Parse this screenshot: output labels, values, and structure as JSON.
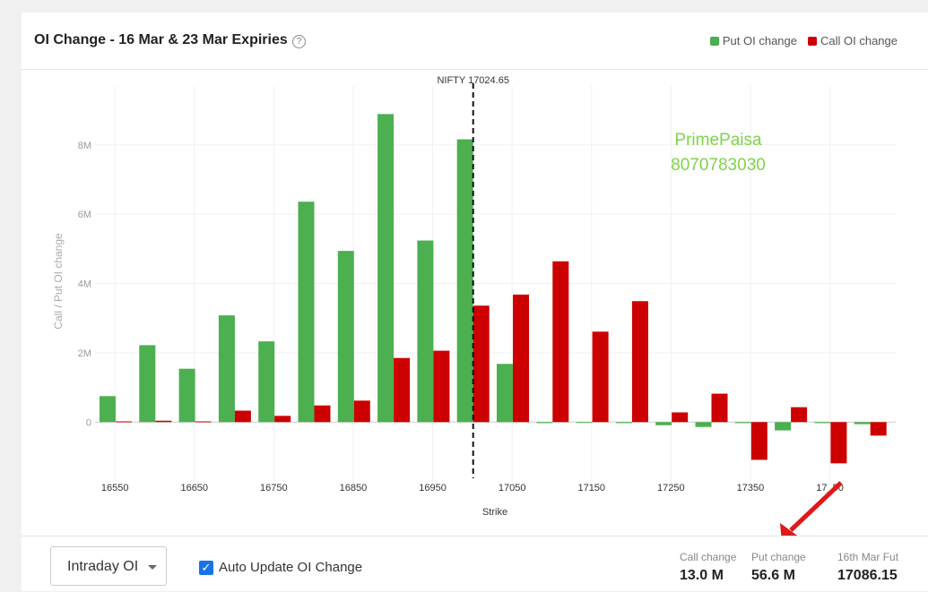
{
  "header": {
    "title": "OI Change - 16 Mar & 23 Mar Expiries",
    "legend": [
      {
        "label": "Put OI change",
        "color": "#4caf50"
      },
      {
        "label": "Call OI change",
        "color": "#cc0000"
      }
    ]
  },
  "watermark": {
    "line1": "PrimePaisa",
    "line2": "8070783030",
    "color": "#7ed348"
  },
  "chart_data": {
    "type": "bar",
    "categories": [
      "16550",
      "16600",
      "16650",
      "16700",
      "16750",
      "16800",
      "16850",
      "16900",
      "16950",
      "17000",
      "17050",
      "17100",
      "17150",
      "17200",
      "17250",
      "17300",
      "17350",
      "17400",
      "17450",
      "17500"
    ],
    "tick_labels": [
      "16550",
      "16650",
      "16750",
      "16850",
      "16950",
      "17050",
      "17150",
      "17250",
      "17350",
      "17_50"
    ],
    "series": [
      {
        "name": "Put OI change",
        "color": "#4caf50",
        "values": [
          0.75,
          2.22,
          1.54,
          3.08,
          2.33,
          6.36,
          4.94,
          8.89,
          5.24,
          8.16,
          1.68,
          -0.03,
          -0.01,
          -0.03,
          -0.09,
          -0.14,
          -0.03,
          -0.24,
          -0.03,
          -0.06
        ]
      },
      {
        "name": "Call OI change",
        "color": "#cc0000",
        "values": [
          0.02,
          0.04,
          0.02,
          0.33,
          0.18,
          0.48,
          0.62,
          1.85,
          2.06,
          3.36,
          3.68,
          4.64,
          2.61,
          3.49,
          0.28,
          0.82,
          -1.09,
          0.43,
          -1.19,
          -0.39
        ]
      }
    ],
    "y_ticks": [
      "0",
      "2M",
      "4M",
      "6M",
      "8M"
    ],
    "ylim": [
      -1.75,
      9.7
    ],
    "ylabel": "Call / Put OI change",
    "xlabel": "Strike",
    "grid": true,
    "spot_line": {
      "label": "NIFTY 17024.65",
      "after_category": "17000"
    }
  },
  "footer": {
    "select_value": "Intraday OI",
    "checkbox_label": "Auto Update OI Change",
    "checkbox_checked": true,
    "stats": [
      {
        "label": "Call change",
        "value": "13.0 M"
      },
      {
        "label": "Put change",
        "value": "56.6 M"
      },
      {
        "label": "16th Mar Fut",
        "value": "17086.15"
      }
    ]
  }
}
